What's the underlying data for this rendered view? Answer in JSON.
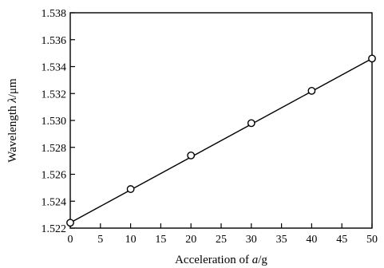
{
  "chart_data": {
    "type": "scatter",
    "title": "",
    "xlabel_prefix": "Acceleration of ",
    "xlabel_var": "a",
    "xlabel_unit": "/g",
    "ylabel_prefix": "Wavelength ",
    "ylabel_var": "λ",
    "ylabel_unit": "/μm",
    "xlim": [
      0,
      50
    ],
    "ylim": [
      1.522,
      1.538
    ],
    "x_ticks": [
      "0",
      "5",
      "10",
      "15",
      "20",
      "25",
      "30",
      "35",
      "40",
      "45",
      "50"
    ],
    "y_ticks": [
      "1.522",
      "1.524",
      "1.526",
      "1.528",
      "1.530",
      "1.532",
      "1.534",
      "1.536",
      "1.538"
    ],
    "grid": false,
    "marker": "open-circle",
    "series": [
      {
        "x": [
          0,
          10,
          20,
          30,
          40,
          50
        ],
        "y": [
          1.5224,
          1.5249,
          1.5274,
          1.5298,
          1.5322,
          1.5346
        ]
      }
    ],
    "fit_line": {
      "x": [
        0,
        50
      ],
      "y": [
        1.5224,
        1.5346
      ]
    }
  }
}
